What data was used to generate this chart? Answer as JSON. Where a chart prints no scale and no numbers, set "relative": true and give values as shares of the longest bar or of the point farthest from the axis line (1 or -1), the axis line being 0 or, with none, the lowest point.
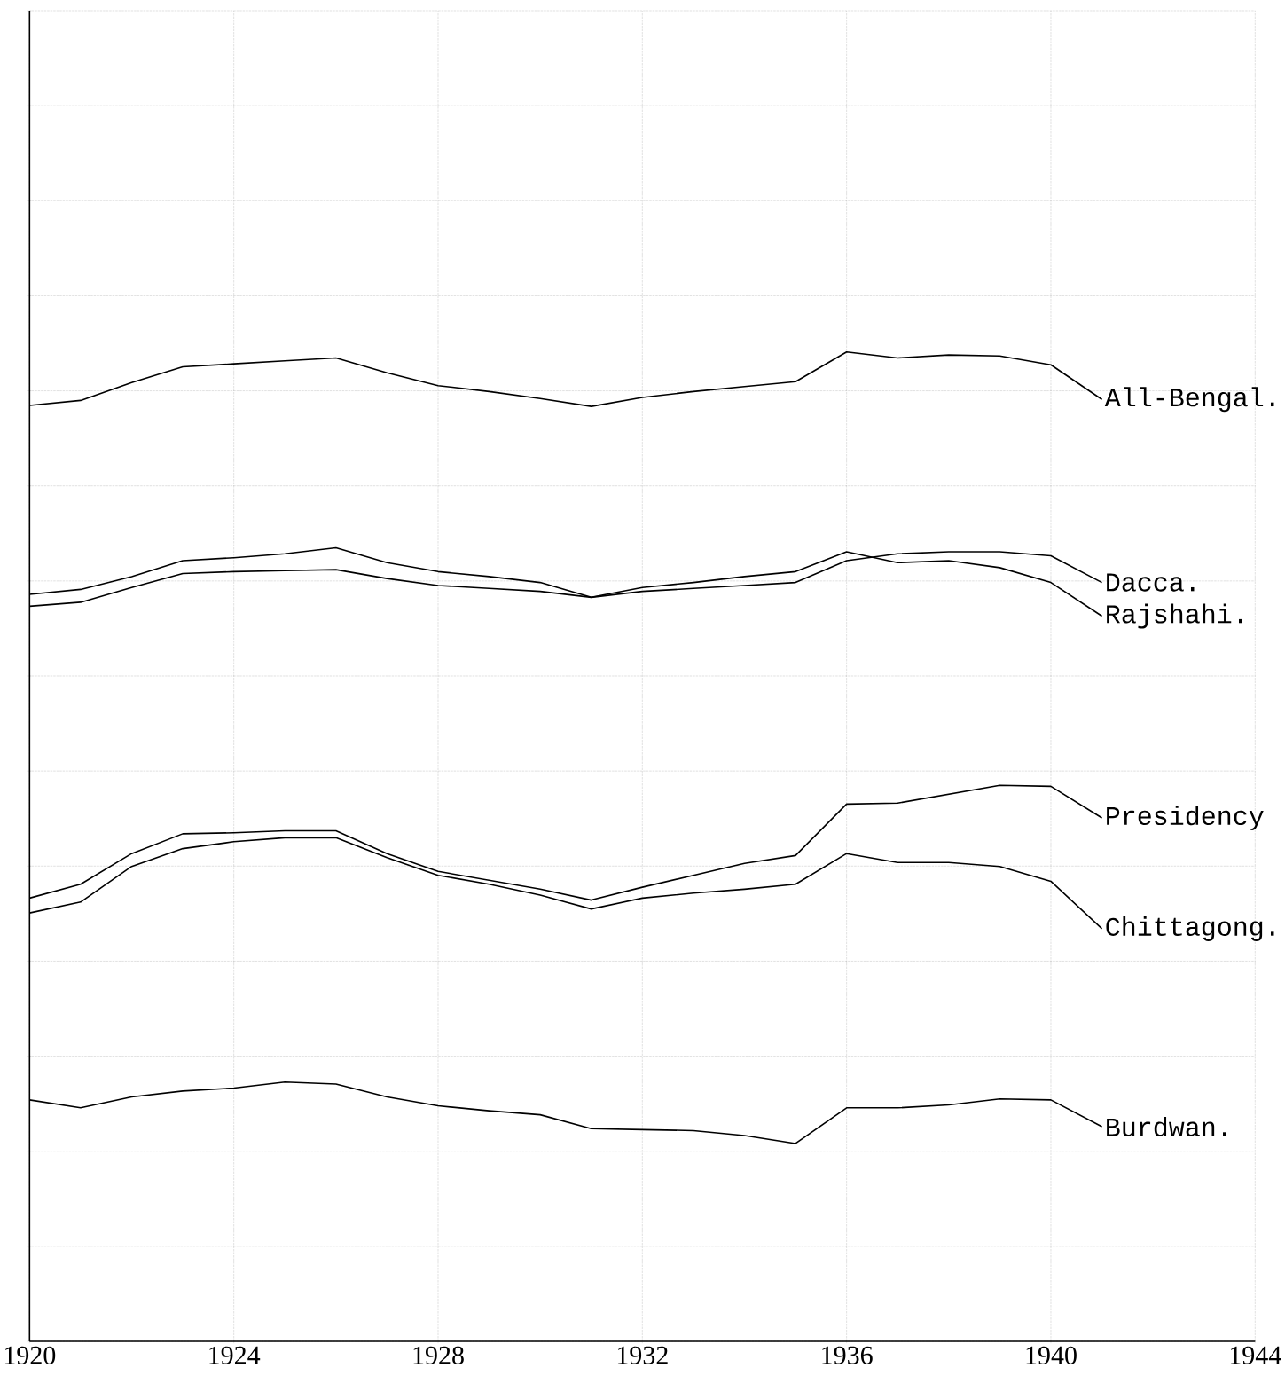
{
  "chart_data": {
    "type": "line",
    "relative": true,
    "x": [
      1920,
      1921,
      1922,
      1923,
      1924,
      1925,
      1926,
      1927,
      1928,
      1929,
      1930,
      1931,
      1932,
      1933,
      1934,
      1935,
      1936,
      1937,
      1938,
      1939,
      1940,
      1941
    ],
    "xlim": [
      1920,
      1944
    ],
    "xticks": [
      1920,
      1924,
      1928,
      1932,
      1936,
      1940,
      1944
    ],
    "tick_labels": "x",
    "grid": true,
    "marker": "none",
    "line_style": "solid",
    "series": [
      {
        "name": "All-Bengal.",
        "color": "#000000",
        "values": [
          0.946,
          0.951,
          0.969,
          0.985,
          0.988,
          0.991,
          0.994,
          0.979,
          0.966,
          0.96,
          0.953,
          0.945,
          0.954,
          0.96,
          0.965,
          0.97,
          1.0,
          0.994,
          0.997,
          0.996,
          0.987,
          0.952
        ]
      },
      {
        "name": "Dacca.",
        "color": "#000000",
        "values": [
          0.743,
          0.747,
          0.762,
          0.776,
          0.778,
          0.779,
          0.78,
          0.771,
          0.764,
          0.761,
          0.758,
          0.752,
          0.758,
          0.761,
          0.764,
          0.767,
          0.789,
          0.796,
          0.798,
          0.798,
          0.794,
          0.767
        ]
      },
      {
        "name": "Rajshahi.",
        "color": "#000000",
        "values": [
          0.755,
          0.76,
          0.773,
          0.789,
          0.792,
          0.796,
          0.802,
          0.787,
          0.778,
          0.773,
          0.767,
          0.752,
          0.762,
          0.767,
          0.773,
          0.778,
          0.798,
          0.787,
          0.789,
          0.782,
          0.767,
          0.733
        ]
      },
      {
        "name": "Presidency",
        "color": "#000000",
        "values": [
          0.448,
          0.462,
          0.493,
          0.513,
          0.514,
          0.516,
          0.516,
          0.493,
          0.475,
          0.466,
          0.457,
          0.446,
          0.459,
          0.471,
          0.483,
          0.491,
          0.543,
          0.544,
          0.553,
          0.562,
          0.561,
          0.529
        ]
      },
      {
        "name": "Chittagong.",
        "color": "#000000",
        "values": [
          0.433,
          0.444,
          0.48,
          0.498,
          0.505,
          0.509,
          0.509,
          0.489,
          0.471,
          0.462,
          0.451,
          0.437,
          0.448,
          0.453,
          0.457,
          0.462,
          0.493,
          0.484,
          0.484,
          0.48,
          0.465,
          0.417
        ]
      },
      {
        "name": "Burdwan.",
        "color": "#000000",
        "values": [
          0.244,
          0.236,
          0.247,
          0.253,
          0.256,
          0.262,
          0.26,
          0.247,
          0.238,
          0.233,
          0.229,
          0.215,
          0.214,
          0.213,
          0.208,
          0.2,
          0.236,
          0.236,
          0.239,
          0.245,
          0.244,
          0.217
        ]
      }
    ]
  }
}
